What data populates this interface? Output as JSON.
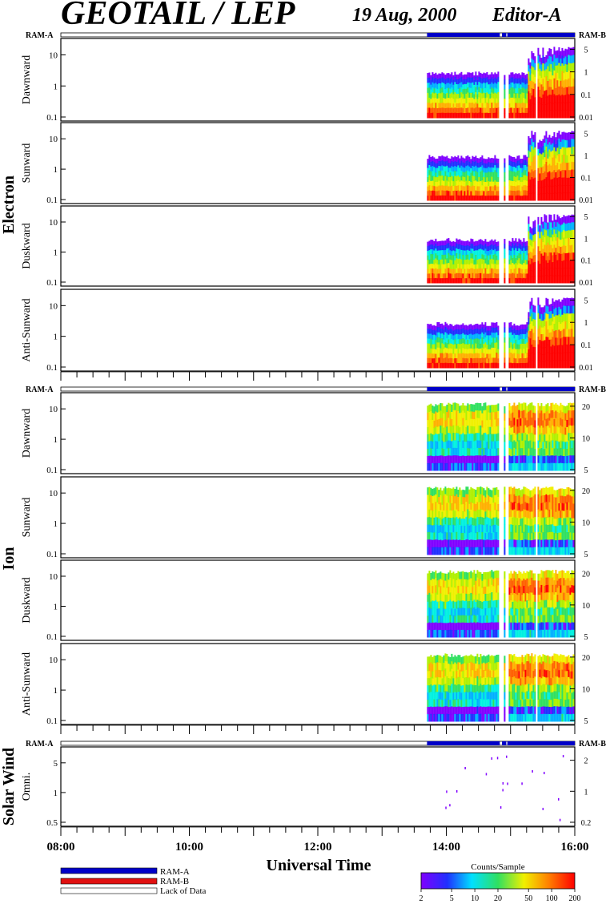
{
  "header": {
    "title": "GEOTAIL / LEP",
    "date": "19 Aug, 2000",
    "editor": "Editor-A"
  },
  "colors": {
    "ram_a": "#0000c8",
    "ram_b": "#e01010",
    "lack": "#ffffff",
    "axis": "#000000"
  },
  "groups": [
    {
      "label": "Electron",
      "ram_left": "RAM-A",
      "ram_right": "RAM-B",
      "panels": [
        "Dawnward",
        "Sunward",
        "Duskward",
        "Anti-Sunward"
      ]
    },
    {
      "label": "Ion",
      "ram_left": "RAM-A",
      "ram_right": "RAM-B",
      "panels": [
        "Dawnward",
        "Sunward",
        "Duskward",
        "Anti-Sunward"
      ]
    },
    {
      "label": "Solar Wind",
      "ram_left": "RAM-A",
      "ram_right": "RAM-B",
      "panels": [
        "Omni."
      ]
    }
  ],
  "legend": {
    "items": [
      {
        "label": "RAM-A",
        "color": "#0000c8"
      },
      {
        "label": "RAM-B",
        "color": "#e01010"
      },
      {
        "label": "Lack of Data",
        "color": "#ffffff"
      }
    ]
  },
  "colorbar": {
    "title": "Counts/Sample",
    "ticks": [
      "2",
      "5",
      "10",
      "20",
      "50",
      "100",
      "200"
    ],
    "range": [
      2,
      200
    ],
    "scale": "log"
  },
  "chart_data": {
    "type": "heatmap",
    "xlabel": "Universal Time",
    "x_range": [
      "08:00",
      "16:00"
    ],
    "x_ticks": [
      "08:00",
      "10:00",
      "12:00",
      "14:00",
      "16:00"
    ],
    "data_start": "13:42",
    "data_gaps": [
      [
        "14:50",
        "14:53"
      ],
      [
        "14:56",
        "14:57"
      ],
      [
        "15:23",
        "15:24"
      ]
    ],
    "ram_a_intervals": [
      [
        "13:42",
        "14:50"
      ],
      [
        "14:52",
        "14:56"
      ],
      [
        "14:57",
        "16:00"
      ]
    ],
    "electron": {
      "ylabel_left_ticks": [
        "0.1",
        "1",
        "10"
      ],
      "y_log": true,
      "right_ticks": [
        "0.01",
        "0.1",
        "1",
        "5"
      ],
      "channels": [
        "Dawnward",
        "Sunward",
        "Duskward",
        "Anti-Sunward"
      ]
    },
    "ion": {
      "ylabel_left_ticks": [
        "0.1",
        "1",
        "10"
      ],
      "y_log": true,
      "right_ticks": [
        "5",
        "10",
        "20"
      ],
      "channels": [
        "Dawnward",
        "Sunward",
        "Duskward",
        "Anti-Sunward"
      ]
    },
    "solar_wind": {
      "ylabel_left_ticks": [
        "0.5",
        "1",
        "5"
      ],
      "y_log": true,
      "right_ticks": [
        "0.2",
        "1",
        "2"
      ],
      "channel": "Omni."
    }
  }
}
